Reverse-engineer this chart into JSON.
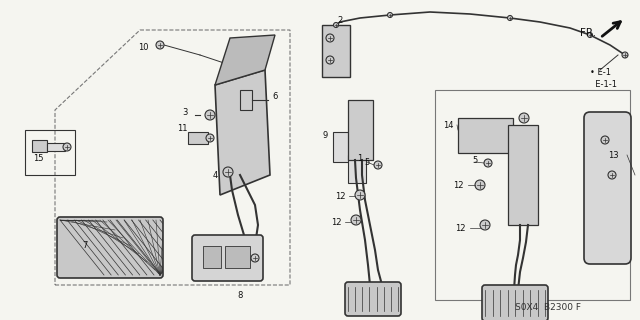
{
  "bg_color": "#f5f5f0",
  "line_color": "#333333",
  "dark_color": "#111111",
  "gray_color": "#888888",
  "fig_width": 6.4,
  "fig_height": 3.2,
  "dpi": 100,
  "part_code": "S0X4  B2300 F",
  "fr_label": "FR.",
  "e1_label": "E-1",
  "e11_label": "E-1-1"
}
